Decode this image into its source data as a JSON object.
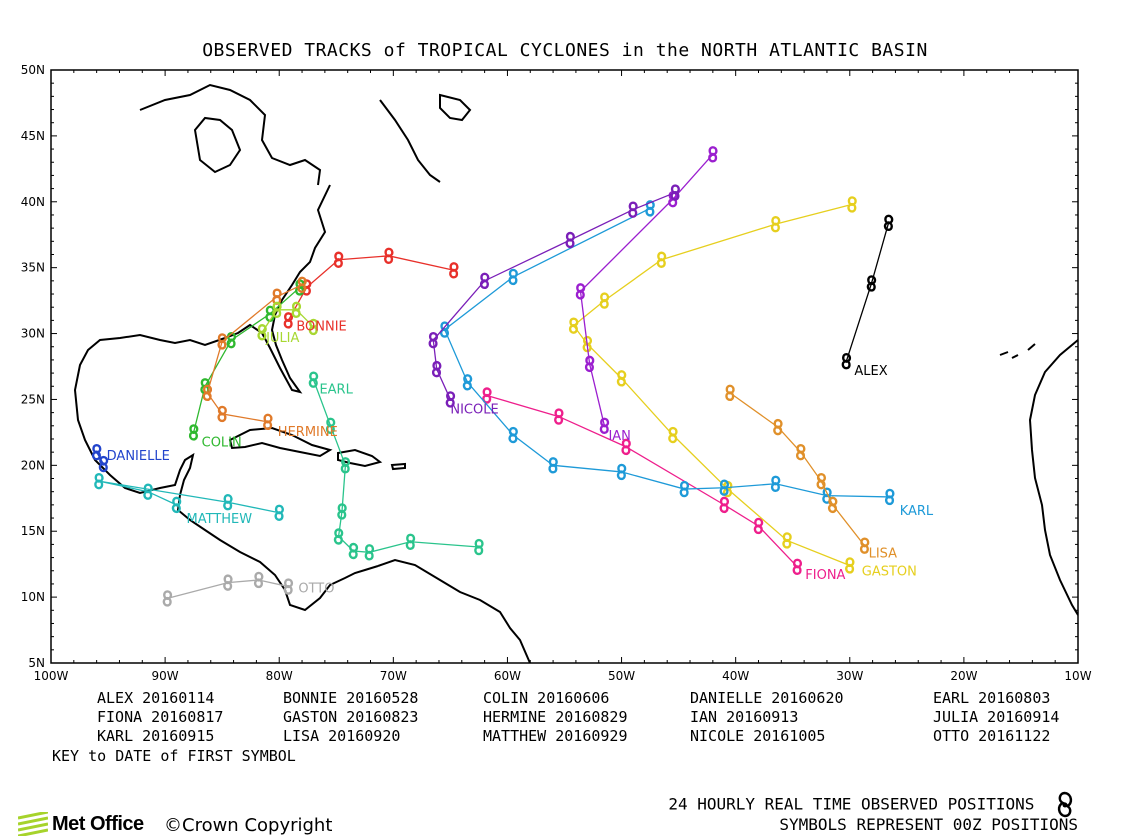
{
  "title": "OBSERVED TRACKS of TROPICAL CYCLONES in the NORTH ATLANTIC BASIN",
  "axes": {
    "lat_labels": [
      "50N",
      "45N",
      "40N",
      "35N",
      "30N",
      "25N",
      "20N",
      "15N",
      "10N",
      "5N"
    ],
    "lon_labels": [
      "100W",
      "90W",
      "80W",
      "70W",
      "60W",
      "50W",
      "40W",
      "30W",
      "20W",
      "10W"
    ],
    "lat_range": [
      5,
      50
    ],
    "lon_range": [
      -100,
      -10
    ]
  },
  "legend": [
    {
      "name": "ALEX",
      "date": "20160114"
    },
    {
      "name": "BONNIE",
      "date": "20160528"
    },
    {
      "name": "COLIN",
      "date": "20160606"
    },
    {
      "name": "DANIELLE",
      "date": "20160620"
    },
    {
      "name": "EARL",
      "date": "20160803"
    },
    {
      "name": "FIONA",
      "date": "20160817"
    },
    {
      "name": "GASTON",
      "date": "20160823"
    },
    {
      "name": "HERMINE",
      "date": "20160829"
    },
    {
      "name": "IAN",
      "date": "20160913"
    },
    {
      "name": "JULIA",
      "date": "20160914"
    },
    {
      "name": "KARL",
      "date": "20160915"
    },
    {
      "name": "LISA",
      "date": "20160920"
    },
    {
      "name": "MATTHEW",
      "date": "20160929"
    },
    {
      "name": "NICOLE",
      "date": "20161005"
    },
    {
      "name": "OTTO",
      "date": "20161122"
    }
  ],
  "key_note": "KEY to DATE of FIRST SYMBOL",
  "footer": {
    "line1": "24 HOURLY REAL TIME OBSERVED POSITIONS",
    "line2": "SYMBOLS REPRESENT 00Z POSITIONS",
    "logo": "Met Office",
    "copyright": "©Crown Copyright"
  },
  "chart_data": {
    "type": "scatter",
    "title": "OBSERVED TRACKS of TROPICAL CYCLONES in the NORTH ATLANTIC BASIN",
    "x_units": "longitude (degrees)",
    "y_units": "latitude (degrees)",
    "xlim": [
      -100,
      -10
    ],
    "ylim": [
      5,
      50
    ],
    "series": [
      {
        "name": "ALEX",
        "color": "#000000",
        "points": [
          [
            -30.3,
            27.9
          ],
          [
            -28.1,
            33.8
          ],
          [
            -26.6,
            38.4
          ]
        ]
      },
      {
        "name": "BONNIE",
        "color": "#e8302a",
        "points": [
          [
            -79.2,
            31.0
          ],
          [
            -77.6,
            33.5
          ],
          [
            -74.8,
            35.6
          ],
          [
            -70.4,
            35.9
          ],
          [
            -64.7,
            34.8
          ]
        ]
      },
      {
        "name": "COLIN",
        "color": "#2fb82f",
        "points": [
          [
            -87.5,
            22.5
          ],
          [
            -86.5,
            26.0
          ],
          [
            -84.2,
            29.5
          ],
          [
            -80.8,
            31.5
          ],
          [
            -78.2,
            33.5
          ]
        ]
      },
      {
        "name": "DANIELLE",
        "color": "#2244cc",
        "points": [
          [
            -96.0,
            21.0
          ],
          [
            -95.4,
            20.1
          ]
        ]
      },
      {
        "name": "EARL",
        "color": "#2ac48c",
        "points": [
          [
            -77.0,
            26.5
          ],
          [
            -75.5,
            23.0
          ],
          [
            -74.2,
            20.0
          ],
          [
            -74.5,
            16.5
          ],
          [
            -74.8,
            14.6
          ],
          [
            -73.5,
            13.5
          ],
          [
            -72.1,
            13.4
          ],
          [
            -68.5,
            14.2
          ],
          [
            -62.5,
            13.8
          ]
        ]
      },
      {
        "name": "FIONA",
        "color": "#ee1f8c",
        "points": [
          [
            -34.6,
            12.3
          ],
          [
            -38.0,
            15.4
          ],
          [
            -41.0,
            17.0
          ],
          [
            -49.6,
            21.4
          ],
          [
            -55.5,
            23.7
          ],
          [
            -61.8,
            25.3
          ]
        ]
      },
      {
        "name": "GASTON",
        "color": "#e6cf1e",
        "points": [
          [
            -30.0,
            12.4
          ],
          [
            -35.5,
            14.3
          ],
          [
            -40.7,
            18.2
          ],
          [
            -45.5,
            22.3
          ],
          [
            -50.0,
            26.6
          ],
          [
            -53.0,
            29.2
          ],
          [
            -54.2,
            30.6
          ],
          [
            -51.5,
            32.5
          ],
          [
            -46.5,
            35.6
          ],
          [
            -36.5,
            38.3
          ],
          [
            -29.8,
            39.8
          ]
        ]
      },
      {
        "name": "HERMINE",
        "color": "#e07a2a",
        "points": [
          [
            -81.0,
            23.3
          ],
          [
            -85.0,
            23.9
          ],
          [
            -86.3,
            25.5
          ],
          [
            -85.0,
            29.4
          ],
          [
            -80.2,
            32.8
          ],
          [
            -78.0,
            33.7
          ]
        ]
      },
      {
        "name": "IAN",
        "color": "#9b1fcf",
        "points": [
          [
            -51.5,
            23.0
          ],
          [
            -52.8,
            27.7
          ],
          [
            -53.6,
            33.2
          ],
          [
            -45.5,
            40.2
          ],
          [
            -42.0,
            43.6
          ]
        ]
      },
      {
        "name": "JULIA",
        "color": "#a8d832",
        "points": [
          [
            -81.5,
            30.1
          ],
          [
            -80.2,
            31.8
          ],
          [
            -78.5,
            31.8
          ],
          [
            -77.0,
            30.5
          ]
        ]
      },
      {
        "name": "KARL",
        "color": "#1e9ad8",
        "points": [
          [
            -26.5,
            17.6
          ],
          [
            -32.0,
            17.7
          ],
          [
            -36.5,
            18.6
          ],
          [
            -41.0,
            18.3
          ],
          [
            -44.5,
            18.2
          ],
          [
            -50.0,
            19.5
          ],
          [
            -56.0,
            20.0
          ],
          [
            -59.5,
            22.3
          ],
          [
            -63.5,
            26.3
          ],
          [
            -65.5,
            30.3
          ],
          [
            -59.5,
            34.3
          ],
          [
            -47.5,
            39.5
          ]
        ]
      },
      {
        "name": "LISA",
        "color": "#e0902a",
        "points": [
          [
            -28.7,
            13.9
          ],
          [
            -31.5,
            17.0
          ],
          [
            -32.5,
            18.8
          ],
          [
            -34.3,
            21.0
          ],
          [
            -36.3,
            22.9
          ],
          [
            -40.5,
            25.5
          ]
        ]
      },
      {
        "name": "MATTHEW",
        "color": "#21b8b8",
        "points": [
          [
            -89.0,
            17.0
          ],
          [
            -91.5,
            18.0
          ],
          [
            -95.8,
            18.8
          ],
          [
            -84.5,
            17.2
          ],
          [
            -80.0,
            16.4
          ]
        ]
      },
      {
        "name": "NICOLE",
        "color": "#7a1fb8",
        "points": [
          [
            -65.0,
            25.0
          ],
          [
            -66.2,
            27.3
          ],
          [
            -66.5,
            29.5
          ],
          [
            -62.0,
            34.0
          ],
          [
            -54.5,
            37.1
          ],
          [
            -49.0,
            39.4
          ],
          [
            -45.3,
            40.7
          ]
        ]
      },
      {
        "name": "OTTO",
        "color": "#aaaaaa",
        "points": [
          [
            -79.2,
            10.8
          ],
          [
            -81.8,
            11.3
          ],
          [
            -84.5,
            11.1
          ],
          [
            -89.8,
            9.9
          ]
        ]
      }
    ]
  }
}
